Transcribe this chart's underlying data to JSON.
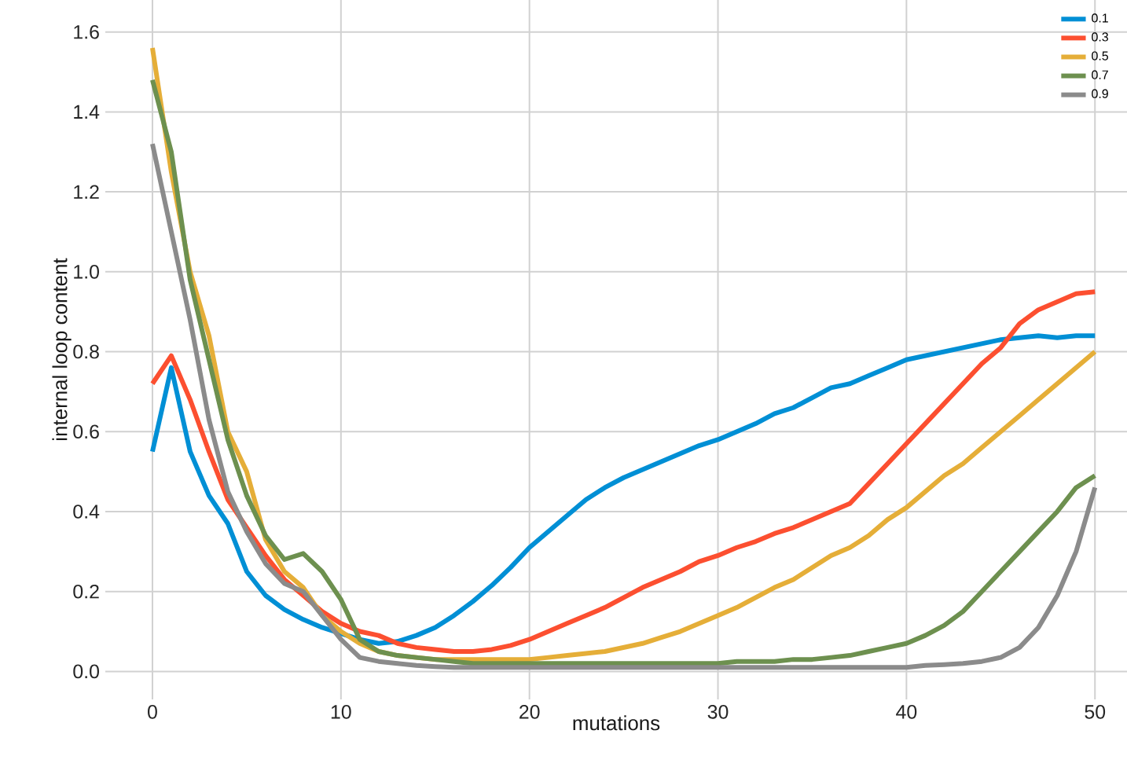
{
  "chart_data": {
    "type": "line",
    "xlabel": "mutations",
    "ylabel": "internal loop content",
    "x": [
      0,
      1,
      2,
      3,
      4,
      5,
      6,
      7,
      8,
      9,
      10,
      11,
      12,
      13,
      14,
      15,
      16,
      17,
      18,
      19,
      20,
      21,
      22,
      23,
      24,
      25,
      26,
      27,
      28,
      29,
      30,
      31,
      32,
      33,
      34,
      35,
      36,
      37,
      38,
      39,
      40,
      41,
      42,
      43,
      44,
      45,
      46,
      47,
      48,
      49,
      50
    ],
    "xlim": [
      -2.5,
      51.7
    ],
    "xticks": [
      0,
      10,
      20,
      30,
      40,
      50
    ],
    "ylim": [
      -0.07,
      1.68
    ],
    "yticks": [
      {
        "value": 0,
        "label": "0.0"
      },
      0.2,
      0.4,
      0.6,
      0.8,
      {
        "value": 1,
        "label": "1.0"
      },
      1.2,
      1.4,
      1.6
    ],
    "grid": true,
    "legend": "top right",
    "marker": "none",
    "line_style": "solid",
    "series": [
      {
        "name": "0.1",
        "color": "#008fd5",
        "values": [
          0.55,
          0.76,
          0.55,
          0.44,
          0.37,
          0.25,
          0.19,
          0.155,
          0.13,
          0.11,
          0.095,
          0.08,
          0.07,
          0.075,
          0.09,
          0.11,
          0.14,
          0.175,
          0.215,
          0.26,
          0.31,
          0.35,
          0.39,
          0.43,
          0.46,
          0.485,
          0.505,
          0.525,
          0.545,
          0.565,
          0.58,
          0.6,
          0.62,
          0.645,
          0.66,
          0.685,
          0.71,
          0.72,
          0.74,
          0.76,
          0.78,
          0.79,
          0.8,
          0.81,
          0.82,
          0.83,
          0.835,
          0.84,
          0.835,
          0.84,
          0.84
        ]
      },
      {
        "name": "0.3",
        "color": "#fc4f30",
        "values": [
          0.72,
          0.79,
          0.68,
          0.55,
          0.43,
          0.36,
          0.29,
          0.23,
          0.19,
          0.15,
          0.12,
          0.1,
          0.09,
          0.07,
          0.06,
          0.055,
          0.05,
          0.05,
          0.055,
          0.065,
          0.08,
          0.1,
          0.12,
          0.14,
          0.16,
          0.185,
          0.21,
          0.23,
          0.25,
          0.275,
          0.29,
          0.31,
          0.325,
          0.345,
          0.36,
          0.38,
          0.4,
          0.42,
          0.47,
          0.52,
          0.57,
          0.62,
          0.67,
          0.72,
          0.77,
          0.81,
          0.87,
          0.905,
          0.925,
          0.945,
          0.95
        ]
      },
      {
        "name": "0.5",
        "color": "#e5ae38",
        "values": [
          1.56,
          1.25,
          1.0,
          0.84,
          0.6,
          0.5,
          0.33,
          0.25,
          0.21,
          0.14,
          0.1,
          0.07,
          0.05,
          0.04,
          0.035,
          0.03,
          0.03,
          0.03,
          0.03,
          0.03,
          0.03,
          0.035,
          0.04,
          0.045,
          0.05,
          0.06,
          0.07,
          0.085,
          0.1,
          0.12,
          0.14,
          0.16,
          0.185,
          0.21,
          0.23,
          0.26,
          0.29,
          0.31,
          0.34,
          0.38,
          0.41,
          0.45,
          0.49,
          0.52,
          0.56,
          0.6,
          0.64,
          0.68,
          0.72,
          0.76,
          0.8
        ]
      },
      {
        "name": "0.7",
        "color": "#6d904f",
        "values": [
          1.48,
          1.3,
          0.98,
          0.78,
          0.58,
          0.44,
          0.34,
          0.28,
          0.295,
          0.25,
          0.18,
          0.08,
          0.05,
          0.04,
          0.035,
          0.03,
          0.025,
          0.02,
          0.02,
          0.02,
          0.02,
          0.02,
          0.02,
          0.02,
          0.02,
          0.02,
          0.02,
          0.02,
          0.02,
          0.02,
          0.02,
          0.025,
          0.025,
          0.025,
          0.03,
          0.03,
          0.035,
          0.04,
          0.05,
          0.06,
          0.07,
          0.09,
          0.115,
          0.15,
          0.2,
          0.25,
          0.3,
          0.35,
          0.4,
          0.46,
          0.49
        ]
      },
      {
        "name": "0.9",
        "color": "#8b8b8b",
        "values": [
          1.32,
          1.1,
          0.88,
          0.63,
          0.45,
          0.35,
          0.27,
          0.22,
          0.2,
          0.14,
          0.08,
          0.035,
          0.025,
          0.02,
          0.015,
          0.012,
          0.01,
          0.01,
          0.01,
          0.01,
          0.01,
          0.01,
          0.01,
          0.01,
          0.01,
          0.01,
          0.01,
          0.01,
          0.01,
          0.01,
          0.01,
          0.01,
          0.01,
          0.01,
          0.01,
          0.01,
          0.01,
          0.01,
          0.01,
          0.01,
          0.01,
          0.015,
          0.017,
          0.02,
          0.025,
          0.035,
          0.06,
          0.11,
          0.19,
          0.3,
          0.46
        ]
      }
    ]
  }
}
